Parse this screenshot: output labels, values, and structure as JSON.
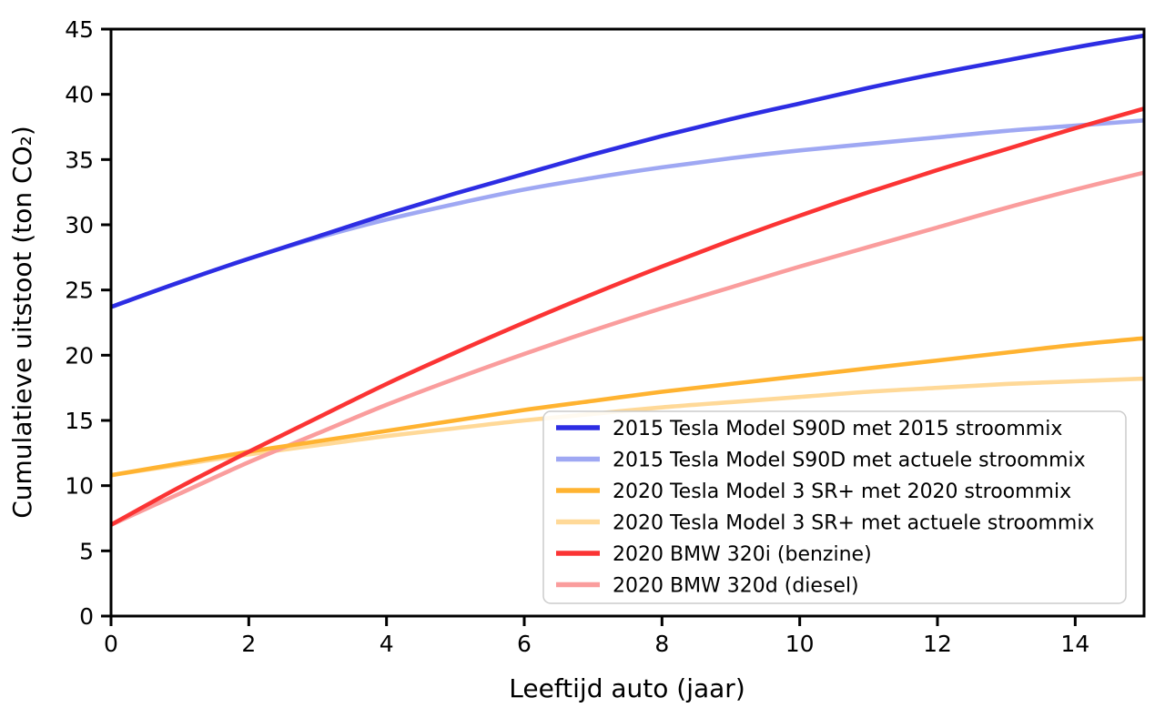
{
  "figure": {
    "background_color": "#ffffff",
    "spine_color": "#000000",
    "text_color": "#000000",
    "legend_border_color": "#cccccc",
    "legend_background": "rgba(255,255,255,0.85)"
  },
  "chart_data": {
    "type": "line",
    "title": "",
    "xlabel": "Leeftijd auto (jaar)",
    "ylabel": "Cumulatieve uitstoot (ton CO₂)",
    "xlim": [
      0,
      15
    ],
    "ylim": [
      0,
      45
    ],
    "xticks": [
      0,
      2,
      4,
      6,
      8,
      10,
      12,
      14
    ],
    "yticks": [
      0,
      5,
      10,
      15,
      20,
      25,
      30,
      35,
      40,
      45
    ],
    "grid": false,
    "legend_position": "inside lower-right",
    "x": [
      0,
      1,
      2,
      3,
      4,
      5,
      6,
      7,
      8,
      9,
      10,
      11,
      12,
      13,
      14,
      15
    ],
    "series": [
      {
        "key": "tesla-s90d-2015-mix",
        "name": "2015 Tesla Model S90D met 2015 stroommix",
        "color": "#2d2de3",
        "draw_order": 6,
        "values": [
          23.7,
          25.6,
          27.4,
          29.1,
          30.8,
          32.4,
          33.9,
          35.4,
          36.8,
          38.1,
          39.3,
          40.5,
          41.6,
          42.6,
          43.6,
          44.5
        ]
      },
      {
        "key": "tesla-s90d-actuele-mix",
        "name": "2015 Tesla Model S90D met actuele stroommix",
        "color": "#9fa8f3",
        "draw_order": 1,
        "values": [
          23.7,
          25.6,
          27.4,
          29.0,
          30.4,
          31.6,
          32.7,
          33.6,
          34.4,
          35.1,
          35.7,
          36.2,
          36.7,
          37.2,
          37.6,
          38.0
        ]
      },
      {
        "key": "tesla-model3-2020-mix",
        "name": "2020 Tesla Model 3 SR+ met 2020 stroommix",
        "color": "#ffb331",
        "draw_order": 4,
        "values": [
          10.8,
          11.7,
          12.6,
          13.4,
          14.2,
          15.0,
          15.8,
          16.5,
          17.2,
          17.8,
          18.4,
          19.0,
          19.6,
          20.2,
          20.8,
          21.3
        ]
      },
      {
        "key": "tesla-model3-actuele-mix",
        "name": "2020 Tesla Model 3 SR+ met actuele stroommix",
        "color": "#ffd998",
        "draw_order": 2,
        "values": [
          10.8,
          11.6,
          12.4,
          13.1,
          13.8,
          14.4,
          15.0,
          15.5,
          16.0,
          16.4,
          16.8,
          17.2,
          17.5,
          17.8,
          18.0,
          18.2
        ]
      },
      {
        "key": "bmw-320i-benzine",
        "name": "2020 BMW 320i (benzine)",
        "color": "#fb3434",
        "draw_order": 5,
        "values": [
          7.0,
          9.9,
          12.6,
          15.2,
          17.8,
          20.2,
          22.5,
          24.7,
          26.8,
          28.8,
          30.7,
          32.5,
          34.2,
          35.8,
          37.4,
          38.9
        ]
      },
      {
        "key": "bmw-320d-diesel",
        "name": "2020 BMW 320d (diesel)",
        "color": "#fa9d9d",
        "draw_order": 3,
        "values": [
          7.0,
          9.4,
          11.8,
          14.0,
          16.2,
          18.2,
          20.1,
          21.9,
          23.6,
          25.2,
          26.8,
          28.3,
          29.8,
          31.3,
          32.7,
          34.0
        ]
      }
    ]
  }
}
